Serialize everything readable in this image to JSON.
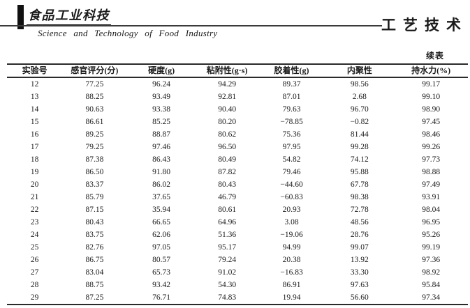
{
  "masthead": {
    "logo_cn": "食品工业科技",
    "journal_en": "Science  and  Technology  of  Food  Industry",
    "section_cn": "工艺技术"
  },
  "table": {
    "continued_label": "续表",
    "headers": [
      "实验号",
      "感官评分(分)",
      "硬度(g)",
      "粘附性(g·s)",
      "胶着性(g)",
      "内聚性",
      "持水力(%)"
    ],
    "col_widths": [
      "12%",
      "14%",
      "15%",
      "13.5%",
      "14.5%",
      "15%",
      "16%"
    ],
    "rows": [
      [
        "12",
        "77.25",
        "96.24",
        "94.29",
        "89.37",
        "98.56",
        "99.17"
      ],
      [
        "13",
        "88.25",
        "93.49",
        "92.81",
        "87.01",
        "2.68",
        "99.10"
      ],
      [
        "14",
        "90.63",
        "93.38",
        "90.40",
        "79.63",
        "96.70",
        "98.90"
      ],
      [
        "15",
        "86.61",
        "85.25",
        "80.20",
        "−78.85",
        "−0.82",
        "97.45"
      ],
      [
        "16",
        "89.25",
        "88.87",
        "80.62",
        "75.36",
        "81.44",
        "98.46"
      ],
      [
        "17",
        "79.25",
        "97.46",
        "96.50",
        "97.95",
        "99.28",
        "99.26"
      ],
      [
        "18",
        "87.38",
        "86.43",
        "80.49",
        "54.82",
        "74.12",
        "97.73"
      ],
      [
        "19",
        "86.50",
        "91.80",
        "87.82",
        "79.46",
        "95.88",
        "98.88"
      ],
      [
        "20",
        "83.37",
        "86.02",
        "80.43",
        "−44.60",
        "67.78",
        "97.49"
      ],
      [
        "21",
        "85.79",
        "37.65",
        "46.79",
        "−60.83",
        "98.38",
        "93.91"
      ],
      [
        "22",
        "87.15",
        "35.94",
        "80.61",
        "20.93",
        "72.78",
        "98.04"
      ],
      [
        "23",
        "80.43",
        "66.65",
        "64.96",
        "3.08",
        "48.56",
        "96.95"
      ],
      [
        "24",
        "83.75",
        "62.06",
        "51.36",
        "−19.06",
        "28.76",
        "95.26"
      ],
      [
        "25",
        "82.76",
        "97.05",
        "95.17",
        "94.99",
        "99.07",
        "99.19"
      ],
      [
        "26",
        "86.75",
        "80.57",
        "79.24",
        "20.38",
        "13.92",
        "97.36"
      ],
      [
        "27",
        "83.04",
        "65.73",
        "91.02",
        "−16.83",
        "33.30",
        "98.92"
      ],
      [
        "28",
        "88.75",
        "93.42",
        "54.30",
        "86.91",
        "97.63",
        "95.84"
      ],
      [
        "29",
        "87.25",
        "76.71",
        "74.83",
        "19.94",
        "56.60",
        "97.34"
      ]
    ]
  },
  "colors": {
    "ink": "#1a1a1a",
    "paper": "#ffffff"
  }
}
